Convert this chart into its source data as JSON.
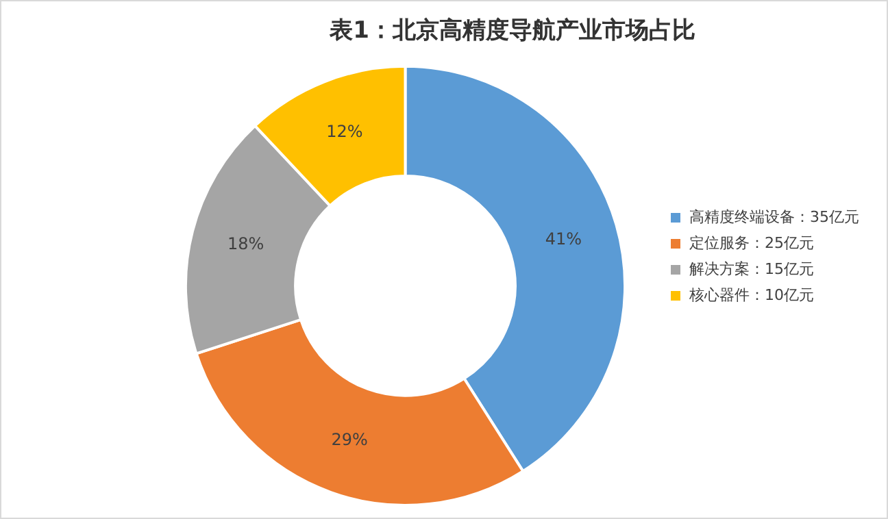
{
  "chart_data": {
    "type": "donut",
    "title": "表1：北京高精度导航产业市场占比",
    "categories": [
      "高精度终端设备：35亿元",
      "定位服务：25亿元",
      "解决方案：15亿元",
      "核心器件：10亿元"
    ],
    "values": [
      41,
      29,
      18,
      12
    ],
    "value_labels": [
      "41%",
      "29%",
      "18%",
      "12%"
    ],
    "colors": [
      "#5b9bd5",
      "#ed7d31",
      "#a5a5a5",
      "#ffc000"
    ],
    "legend": "right"
  }
}
